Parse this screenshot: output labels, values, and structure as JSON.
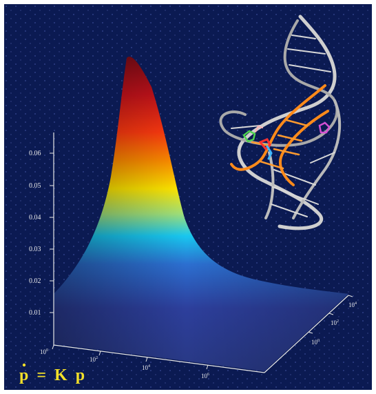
{
  "figure": {
    "background": "#0b1a52",
    "equation": {
      "p": "p",
      "equals": "=",
      "K": "K",
      "p2": "p",
      "color": "#f2df2a"
    },
    "colors": {
      "peak_red": "#b3121c",
      "orange": "#ff7a00",
      "yellow": "#ffe600",
      "cyan": "#18c7f0",
      "blue": "#2f4fb3",
      "base": "#3a4aa8"
    },
    "z_axis": {
      "ticks": [
        "0.01",
        "0.02",
        "0.03",
        "0.04",
        "0.05",
        "0.06"
      ]
    },
    "x_axis": {
      "ticks": [
        "10",
        "10",
        "10",
        "10"
      ],
      "exponents": [
        "0",
        "2",
        "4",
        "6"
      ]
    },
    "y_axis": {
      "ticks": [
        "10",
        "10",
        "10"
      ],
      "exponents": [
        "0",
        "2",
        "4"
      ]
    },
    "molecule": {
      "strand_color": "#c9c9c9",
      "highlight_color": "#ff8a1a"
    }
  }
}
